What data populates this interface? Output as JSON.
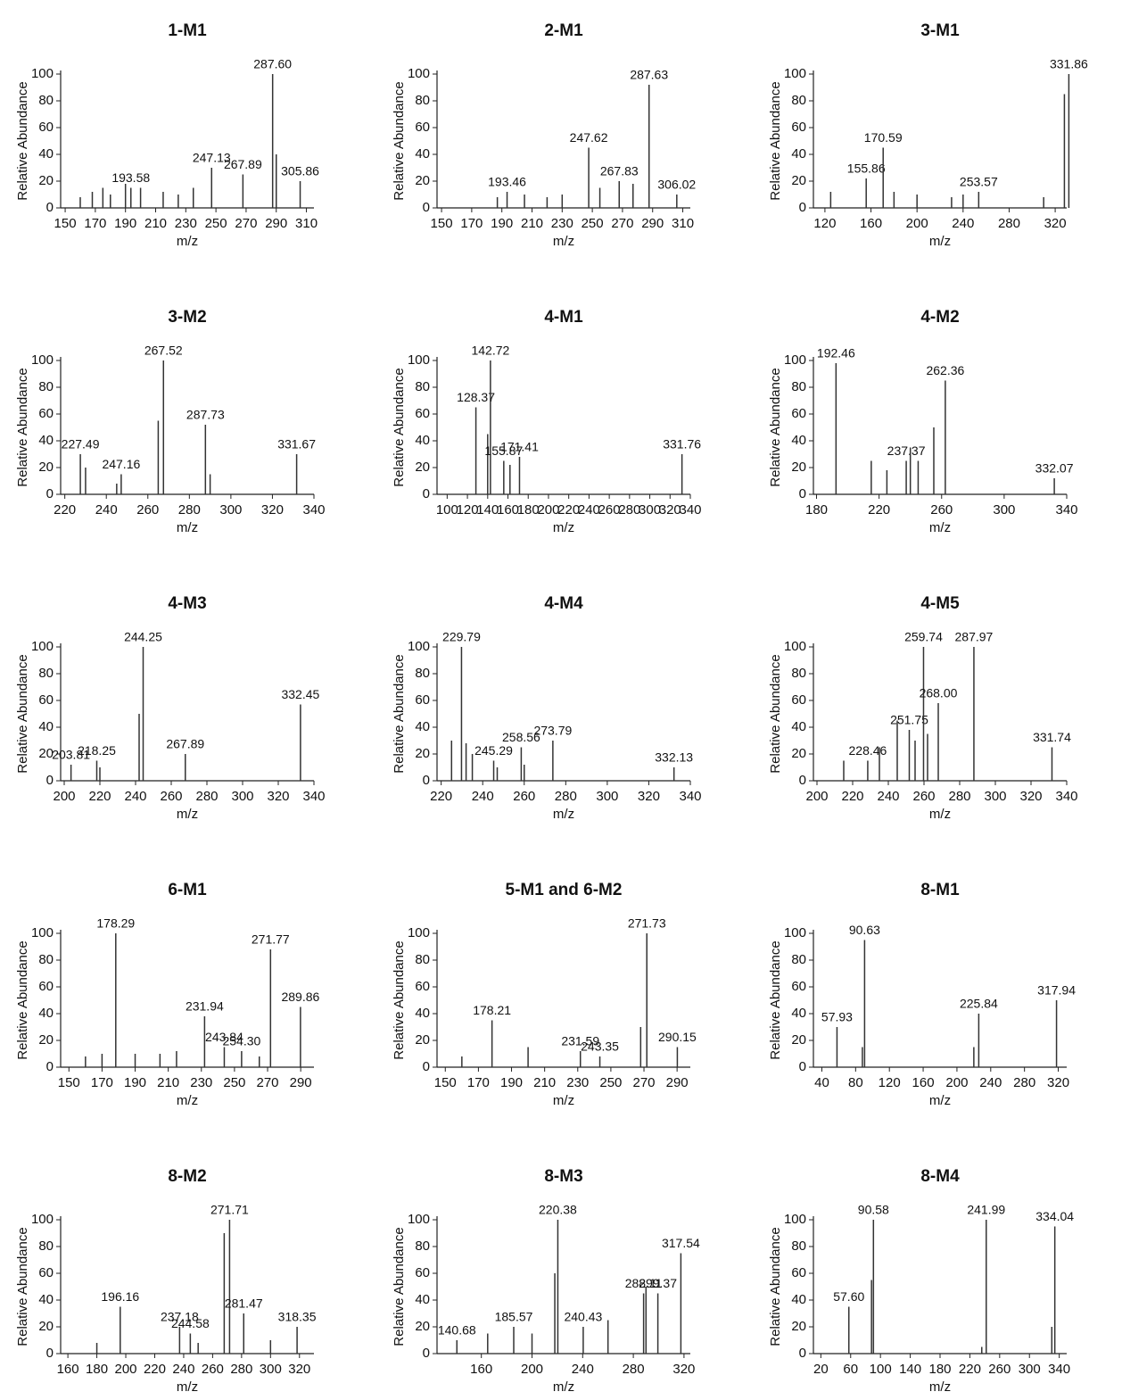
{
  "chart_data": [
    {
      "type": "bar",
      "title": "1-M1",
      "x_label": "m/z",
      "y_label": "Relative Abundance",
      "color": "#333333",
      "xlim": [
        147,
        315
      ],
      "xticks": [
        150,
        170,
        190,
        210,
        230,
        250,
        270,
        290,
        310
      ],
      "ylim": [
        0,
        100
      ],
      "yticks": [
        0,
        20,
        40,
        60,
        80,
        100
      ],
      "x": [
        160,
        168,
        175,
        180,
        190,
        193.58,
        200,
        215,
        225,
        235,
        247.13,
        267.89,
        287.6,
        290,
        305.86
      ],
      "values": [
        8,
        12,
        15,
        10,
        18,
        15,
        15,
        12,
        10,
        15,
        30,
        25,
        100,
        40,
        20
      ],
      "peak_labels": [
        null,
        null,
        null,
        null,
        null,
        "193.58",
        null,
        null,
        null,
        null,
        "247.13",
        "267.89",
        "287.60",
        null,
        "305.86"
      ]
    },
    {
      "type": "bar",
      "title": "2-M1",
      "x_label": "m/z",
      "y_label": "Relative Abundance",
      "color": "#333333",
      "xlim": [
        147,
        315
      ],
      "xticks": [
        150,
        170,
        190,
        210,
        230,
        250,
        270,
        290,
        310
      ],
      "ylim": [
        0,
        100
      ],
      "yticks": [
        0,
        20,
        40,
        60,
        80,
        100
      ],
      "x": [
        187,
        193.46,
        205,
        220,
        230,
        247.62,
        255,
        267.83,
        277,
        287.63,
        306.02
      ],
      "values": [
        8,
        12,
        10,
        8,
        10,
        45,
        15,
        20,
        18,
        92,
        10
      ],
      "peak_labels": [
        null,
        "193.46",
        null,
        null,
        null,
        "247.62",
        null,
        "267.83",
        null,
        "287.63",
        "306.02"
      ]
    },
    {
      "type": "bar",
      "title": "3-M1",
      "x_label": "m/z",
      "y_label": "Relative Abundance",
      "color": "#333333",
      "xlim": [
        110,
        330
      ],
      "xticks": [
        120,
        160,
        200,
        240,
        280,
        320
      ],
      "ylim": [
        0,
        100
      ],
      "yticks": [
        0,
        20,
        40,
        60,
        80,
        100
      ],
      "x": [
        125,
        155.86,
        170.59,
        180,
        200,
        230,
        240,
        253.57,
        310,
        328,
        331.86
      ],
      "values": [
        12,
        22,
        45,
        12,
        10,
        8,
        10,
        12,
        8,
        85,
        100
      ],
      "peak_labels": [
        null,
        "155.86",
        "170.59",
        null,
        null,
        null,
        null,
        "253.57",
        null,
        null,
        "331.86"
      ]
    },
    {
      "type": "bar",
      "title": "3-M2",
      "x_label": "m/z",
      "y_label": "Relative Abundance",
      "color": "#333333",
      "xlim": [
        218,
        340
      ],
      "xticks": [
        220,
        240,
        260,
        280,
        300,
        320,
        340
      ],
      "ylim": [
        0,
        100
      ],
      "yticks": [
        0,
        20,
        40,
        60,
        80,
        100
      ],
      "x": [
        227.49,
        230,
        245,
        247.16,
        265,
        267.52,
        287.73,
        290,
        331.67
      ],
      "values": [
        30,
        20,
        8,
        15,
        55,
        100,
        52,
        15,
        30
      ],
      "peak_labels": [
        "227.49",
        null,
        null,
        "247.16",
        null,
        "267.52",
        "287.73",
        null,
        "331.67"
      ]
    },
    {
      "type": "bar",
      "title": "4-M1",
      "x_label": "m/z",
      "y_label": "Relative Abundance",
      "color": "#333333",
      "xlim": [
        90,
        340
      ],
      "xticks": [
        100,
        120,
        140,
        160,
        180,
        200,
        220,
        240,
        260,
        280,
        300,
        320,
        340
      ],
      "ylim": [
        0,
        100
      ],
      "yticks": [
        0,
        20,
        40,
        60,
        80,
        100
      ],
      "x": [
        128.37,
        140,
        142.72,
        155.87,
        162,
        171.41,
        331.76
      ],
      "values": [
        65,
        45,
        100,
        25,
        22,
        28,
        30
      ],
      "peak_labels": [
        "128.37",
        null,
        "142.72",
        "155.87",
        null,
        "171.41",
        "331.76"
      ]
    },
    {
      "type": "bar",
      "title": "4-M2",
      "x_label": "m/z",
      "y_label": "Relative Abundance",
      "color": "#333333",
      "xlim": [
        178,
        340
      ],
      "xticks": [
        180,
        220,
        260,
        300,
        340
      ],
      "ylim": [
        0,
        100
      ],
      "yticks": [
        0,
        20,
        40,
        60,
        80,
        100
      ],
      "x": [
        192.46,
        215,
        225,
        237.37,
        240,
        245,
        255,
        262.36,
        332.07
      ],
      "values": [
        98,
        25,
        18,
        25,
        35,
        25,
        50,
        85,
        12
      ],
      "peak_labels": [
        "192.46",
        null,
        null,
        "237.37",
        null,
        null,
        null,
        "262.36",
        "332.07"
      ]
    },
    {
      "type": "bar",
      "title": "4-M3",
      "x_label": "m/z",
      "y_label": "Relative Abundance",
      "color": "#333333",
      "xlim": [
        198,
        340
      ],
      "xticks": [
        200,
        220,
        240,
        260,
        280,
        300,
        320,
        340
      ],
      "ylim": [
        0,
        100
      ],
      "yticks": [
        0,
        20,
        40,
        60,
        80,
        100
      ],
      "x": [
        203.81,
        218.25,
        220,
        242,
        244.25,
        267.89,
        332.45
      ],
      "values": [
        12,
        15,
        10,
        50,
        100,
        20,
        57
      ],
      "peak_labels": [
        "203.81",
        "218.25",
        null,
        null,
        "244.25",
        "267.89",
        "332.45"
      ]
    },
    {
      "type": "bar",
      "title": "4-M4",
      "x_label": "m/z",
      "y_label": "Relative Abundance",
      "color": "#333333",
      "xlim": [
        218,
        340
      ],
      "xticks": [
        220,
        240,
        260,
        280,
        300,
        320,
        340
      ],
      "ylim": [
        0,
        100
      ],
      "yticks": [
        0,
        20,
        40,
        60,
        80,
        100
      ],
      "x": [
        225,
        229.79,
        232,
        235,
        245.29,
        247,
        258.56,
        260,
        273.79,
        332.13
      ],
      "values": [
        30,
        100,
        28,
        20,
        15,
        10,
        25,
        12,
        30,
        10
      ],
      "peak_labels": [
        null,
        "229.79",
        null,
        null,
        "245.29",
        null,
        "258.56",
        null,
        "273.79",
        "332.13"
      ]
    },
    {
      "type": "bar",
      "title": "4-M5",
      "x_label": "m/z",
      "y_label": "Relative Abundance",
      "color": "#333333",
      "xlim": [
        198,
        340
      ],
      "xticks": [
        200,
        220,
        240,
        260,
        280,
        300,
        320,
        340
      ],
      "ylim": [
        0,
        100
      ],
      "yticks": [
        0,
        20,
        40,
        60,
        80,
        100
      ],
      "x": [
        215,
        228.46,
        235,
        245,
        251.75,
        255,
        259.74,
        262,
        268.0,
        287.97,
        331.74
      ],
      "values": [
        15,
        15,
        25,
        45,
        38,
        30,
        100,
        35,
        58,
        100,
        25
      ],
      "peak_labels": [
        null,
        "228.46",
        null,
        null,
        "251.75",
        null,
        "259.74",
        null,
        "268.00",
        "287.97",
        "331.74"
      ]
    },
    {
      "type": "bar",
      "title": "6-M1",
      "x_label": "m/z",
      "y_label": "Relative Abundance",
      "color": "#333333",
      "xlim": [
        145,
        298
      ],
      "xticks": [
        150,
        170,
        190,
        210,
        230,
        250,
        270,
        290
      ],
      "ylim": [
        0,
        100
      ],
      "yticks": [
        0,
        20,
        40,
        60,
        80,
        100
      ],
      "x": [
        160,
        170,
        178.29,
        190,
        205,
        215,
        231.94,
        243.84,
        254.3,
        265,
        271.77,
        289.86
      ],
      "values": [
        8,
        10,
        100,
        10,
        10,
        12,
        38,
        15,
        12,
        8,
        88,
        45
      ],
      "peak_labels": [
        null,
        null,
        "178.29",
        null,
        null,
        null,
        "231.94",
        "243.84",
        "254.30",
        null,
        "271.77",
        "289.86"
      ]
    },
    {
      "type": "bar",
      "title": "5-M1 and 6-M2",
      "x_label": "m/z",
      "y_label": "Relative Abundance",
      "color": "#333333",
      "xlim": [
        145,
        298
      ],
      "xticks": [
        150,
        170,
        190,
        210,
        230,
        250,
        270,
        290
      ],
      "ylim": [
        0,
        100
      ],
      "yticks": [
        0,
        20,
        40,
        60,
        80,
        100
      ],
      "x": [
        160,
        178.21,
        200,
        231.59,
        243.35,
        268,
        271.73,
        290.15
      ],
      "values": [
        8,
        35,
        15,
        12,
        8,
        30,
        100,
        15
      ],
      "peak_labels": [
        null,
        "178.21",
        null,
        "231.59",
        "243.35",
        null,
        "271.73",
        "290.15"
      ]
    },
    {
      "type": "bar",
      "title": "8-M1",
      "x_label": "m/z",
      "y_label": "Relative Abundance",
      "color": "#333333",
      "xlim": [
        30,
        330
      ],
      "xticks": [
        40,
        80,
        120,
        160,
        200,
        240,
        280,
        320
      ],
      "ylim": [
        0,
        100
      ],
      "yticks": [
        0,
        20,
        40,
        60,
        80,
        100
      ],
      "x": [
        57.93,
        88,
        90.63,
        220,
        225.84,
        317.94
      ],
      "values": [
        30,
        15,
        95,
        15,
        40,
        50
      ],
      "peak_labels": [
        "57.93",
        null,
        "90.63",
        null,
        "225.84",
        "317.94"
      ]
    },
    {
      "type": "bar",
      "title": "8-M2",
      "x_label": "m/z",
      "y_label": "Relative Abundance",
      "color": "#333333",
      "xlim": [
        155,
        330
      ],
      "xticks": [
        160,
        180,
        200,
        220,
        240,
        260,
        280,
        300,
        320
      ],
      "ylim": [
        0,
        100
      ],
      "yticks": [
        0,
        20,
        40,
        60,
        80,
        100
      ],
      "x": [
        180,
        196.16,
        237.18,
        244.58,
        250,
        268,
        271.71,
        281.47,
        300,
        318.35
      ],
      "values": [
        8,
        35,
        20,
        15,
        8,
        90,
        100,
        30,
        10,
        20
      ],
      "peak_labels": [
        null,
        "196.16",
        "237.18",
        "244.58",
        null,
        null,
        "271.71",
        "281.47",
        null,
        "318.35"
      ]
    },
    {
      "type": "bar",
      "title": "8-M3",
      "x_label": "m/z",
      "y_label": "Relative Abundance",
      "color": "#333333",
      "xlim": [
        125,
        325
      ],
      "xticks": [
        160,
        200,
        240,
        280,
        320
      ],
      "ylim": [
        0,
        100
      ],
      "yticks": [
        0,
        20,
        40,
        60,
        80,
        100
      ],
      "x": [
        140.68,
        165,
        185.57,
        200,
        218,
        220.38,
        240.43,
        260,
        288.11,
        290,
        299.37,
        317.54
      ],
      "values": [
        10,
        15,
        20,
        15,
        60,
        100,
        20,
        25,
        45,
        50,
        45,
        75
      ],
      "peak_labels": [
        "140.68",
        null,
        "185.57",
        null,
        null,
        "220.38",
        "240.43",
        null,
        "288.11",
        null,
        "299.37",
        "317.54"
      ]
    },
    {
      "type": "bar",
      "title": "8-M4",
      "x_label": "m/z",
      "y_label": "Relative Abundance",
      "color": "#333333",
      "xlim": [
        10,
        350
      ],
      "xticks": [
        20,
        60,
        100,
        140,
        180,
        220,
        260,
        300,
        340
      ],
      "ylim": [
        0,
        100
      ],
      "yticks": [
        0,
        20,
        40,
        60,
        80,
        100
      ],
      "x": [
        57.6,
        88,
        90.58,
        236,
        241.99,
        330,
        334.04
      ],
      "values": [
        35,
        55,
        100,
        5,
        100,
        20,
        95
      ],
      "peak_labels": [
        "57.60",
        null,
        "90.58",
        null,
        "241.99",
        null,
        "334.04"
      ]
    }
  ]
}
